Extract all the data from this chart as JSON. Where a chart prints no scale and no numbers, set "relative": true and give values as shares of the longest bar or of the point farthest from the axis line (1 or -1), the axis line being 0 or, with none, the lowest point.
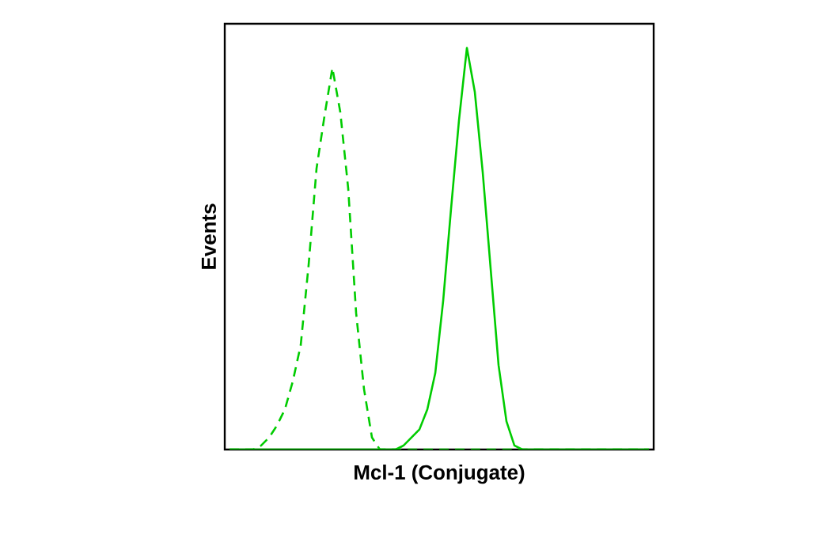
{
  "chart_data": {
    "type": "line",
    "relative": true,
    "xlabel": "Mcl-1 (Conjugate)",
    "ylabel": "Events",
    "categories": [
      null,
      null,
      null,
      null,
      null,
      null,
      null,
      null,
      null,
      null,
      null,
      null,
      null,
      null,
      null,
      null,
      null,
      null,
      null,
      null,
      null,
      null,
      null,
      null,
      null,
      null,
      null,
      null,
      null,
      null,
      null,
      null,
      null,
      null,
      null,
      null,
      null,
      null,
      null,
      null,
      null,
      null,
      null,
      null,
      null,
      null,
      null,
      null,
      null,
      null,
      null,
      null,
      null,
      null
    ],
    "series": [
      {
        "color": "#00cc00",
        "line_style": "dashed",
        "values": [
          0,
          0,
          0,
          0,
          0.01,
          0.03,
          0.06,
          0.1,
          0.17,
          0.26,
          0.46,
          0.7,
          0.83,
          0.95,
          0.84,
          0.65,
          0.34,
          0.15,
          0.03,
          0,
          0,
          0,
          0,
          0,
          0,
          0,
          0,
          0,
          0,
          0,
          0,
          0,
          0,
          0,
          0,
          0,
          0,
          0,
          0,
          0,
          0,
          0,
          0,
          0,
          0,
          0,
          0,
          0,
          0,
          0,
          0,
          0,
          0,
          0
        ]
      },
      {
        "color": "#00cc00",
        "line_style": "solid",
        "values": [
          0,
          0,
          0,
          0,
          0,
          0,
          0,
          0,
          0,
          0,
          0,
          0,
          0,
          0,
          0,
          0,
          0,
          0,
          0,
          0,
          0,
          0,
          0.01,
          0.03,
          0.05,
          0.1,
          0.19,
          0.37,
          0.6,
          0.82,
          1,
          0.89,
          0.69,
          0.45,
          0.21,
          0.07,
          0.01,
          0,
          0,
          0,
          0,
          0,
          0,
          0,
          0,
          0,
          0,
          0,
          0,
          0,
          0,
          0,
          0,
          0
        ]
      }
    ]
  }
}
